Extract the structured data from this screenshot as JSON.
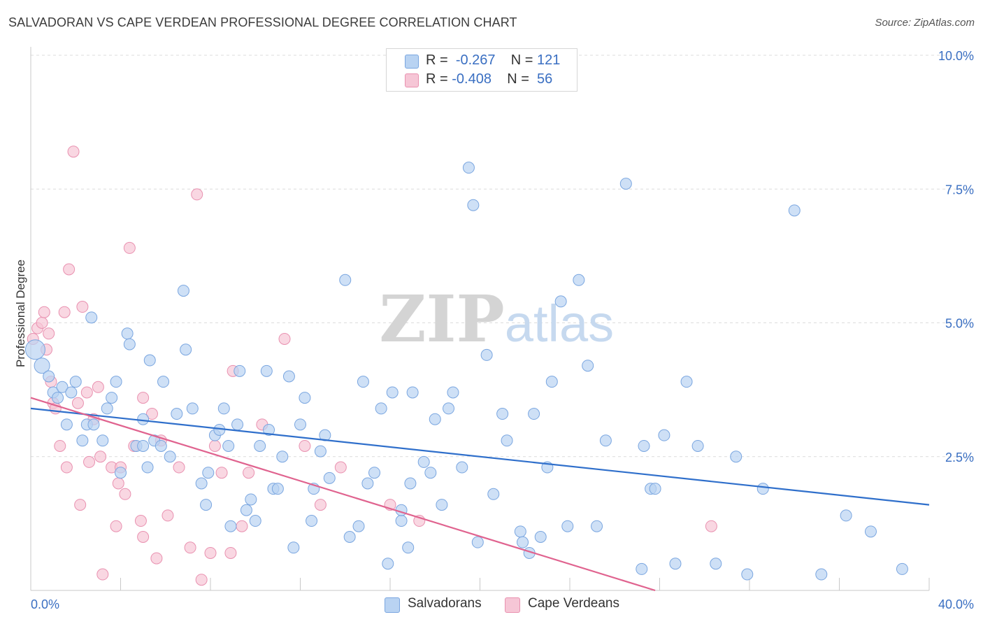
{
  "header": {
    "title": "SALVADORAN VS CAPE VERDEAN PROFESSIONAL DEGREE CORRELATION CHART",
    "source": "Source: ZipAtlas.com"
  },
  "watermark": {
    "zip": "ZIP",
    "atlas": "atlas"
  },
  "legend_top": {
    "rows": [
      {
        "r_label": "R =",
        "r_value": "-0.267",
        "n_label": "N =",
        "n_value": "121"
      },
      {
        "r_label": "R =",
        "r_value": "-0.408",
        "n_label": "N =",
        "n_value": "56"
      }
    ]
  },
  "legend_bottom": {
    "items": [
      "Salvadorans",
      "Cape Verdeans"
    ]
  },
  "colors": {
    "blue_fill": "#b9d3f2",
    "blue_stroke": "#7aa6e0",
    "blue_line": "#2f6fcb",
    "pink_fill": "#f6c6d6",
    "pink_stroke": "#e991b0",
    "pink_line": "#e0638f",
    "tick_label": "#3a6fc2",
    "grid": "#dcdcdc"
  },
  "chart_data": {
    "type": "scatter",
    "title": "SALVADORAN VS CAPE VERDEAN PROFESSIONAL DEGREE CORRELATION CHART",
    "xlabel": "",
    "ylabel": "Professional Degree",
    "xlim": [
      0,
      40
    ],
    "ylim": [
      0,
      10
    ],
    "x_tick_labels": [
      {
        "value": 0,
        "label": "0.0%"
      },
      {
        "value": 40,
        "label": "40.0%"
      }
    ],
    "y_tick_labels": [
      {
        "value": 2.5,
        "label": "2.5%"
      },
      {
        "value": 5.0,
        "label": "5.0%"
      },
      {
        "value": 7.5,
        "label": "7.5%"
      },
      {
        "value": 10.0,
        "label": "10.0%"
      }
    ],
    "grid": "horizontal dashed",
    "legend_position": "top-center",
    "series": [
      {
        "name": "Salvadorans",
        "color": "#b9d3f2",
        "points": [
          [
            0.2,
            4.5
          ],
          [
            0.5,
            4.2
          ],
          [
            0.8,
            4.0
          ],
          [
            1.0,
            3.7
          ],
          [
            1.2,
            3.6
          ],
          [
            1.4,
            3.8
          ],
          [
            1.6,
            3.1
          ],
          [
            1.8,
            3.7
          ],
          [
            2.0,
            3.9
          ],
          [
            2.3,
            2.8
          ],
          [
            2.5,
            3.1
          ],
          [
            2.8,
            3.1
          ],
          [
            2.7,
            5.1
          ],
          [
            3.2,
            2.8
          ],
          [
            3.4,
            3.4
          ],
          [
            3.6,
            3.6
          ],
          [
            3.8,
            3.9
          ],
          [
            4.0,
            2.2
          ],
          [
            4.3,
            4.8
          ],
          [
            4.4,
            4.6
          ],
          [
            4.7,
            2.7
          ],
          [
            5.0,
            2.7
          ],
          [
            5.0,
            3.2
          ],
          [
            5.2,
            2.3
          ],
          [
            5.3,
            4.3
          ],
          [
            5.5,
            2.8
          ],
          [
            5.8,
            2.7
          ],
          [
            5.9,
            3.9
          ],
          [
            6.2,
            2.5
          ],
          [
            6.5,
            3.3
          ],
          [
            6.8,
            5.6
          ],
          [
            6.9,
            4.5
          ],
          [
            7.2,
            3.4
          ],
          [
            7.6,
            2.0
          ],
          [
            7.8,
            1.6
          ],
          [
            7.9,
            2.2
          ],
          [
            8.2,
            2.9
          ],
          [
            8.4,
            3.0
          ],
          [
            8.6,
            3.4
          ],
          [
            8.8,
            2.7
          ],
          [
            8.9,
            1.2
          ],
          [
            9.2,
            3.1
          ],
          [
            9.3,
            4.1
          ],
          [
            9.6,
            1.5
          ],
          [
            9.8,
            1.7
          ],
          [
            10.0,
            1.3
          ],
          [
            10.2,
            2.7
          ],
          [
            10.5,
            4.1
          ],
          [
            10.6,
            3.0
          ],
          [
            10.8,
            1.9
          ],
          [
            11.0,
            1.9
          ],
          [
            11.2,
            2.5
          ],
          [
            11.5,
            4.0
          ],
          [
            11.7,
            0.8
          ],
          [
            12.0,
            3.1
          ],
          [
            12.2,
            3.6
          ],
          [
            12.5,
            1.3
          ],
          [
            12.6,
            1.9
          ],
          [
            12.9,
            2.6
          ],
          [
            13.1,
            2.9
          ],
          [
            13.3,
            2.1
          ],
          [
            14.0,
            5.8
          ],
          [
            14.2,
            1.0
          ],
          [
            14.6,
            1.2
          ],
          [
            14.8,
            3.9
          ],
          [
            15.0,
            2.0
          ],
          [
            15.3,
            2.2
          ],
          [
            15.6,
            3.4
          ],
          [
            15.9,
            0.5
          ],
          [
            16.1,
            3.7
          ],
          [
            16.5,
            1.3
          ],
          [
            16.5,
            1.5
          ],
          [
            16.8,
            0.8
          ],
          [
            16.9,
            2.0
          ],
          [
            17.0,
            3.7
          ],
          [
            17.5,
            2.4
          ],
          [
            17.8,
            2.2
          ],
          [
            18.0,
            3.2
          ],
          [
            18.3,
            1.6
          ],
          [
            18.6,
            3.4
          ],
          [
            18.8,
            3.7
          ],
          [
            19.2,
            2.3
          ],
          [
            19.5,
            7.9
          ],
          [
            19.7,
            7.2
          ],
          [
            19.9,
            0.9
          ],
          [
            20.3,
            4.4
          ],
          [
            20.6,
            1.8
          ],
          [
            21.0,
            3.3
          ],
          [
            21.2,
            2.8
          ],
          [
            21.8,
            1.1
          ],
          [
            21.9,
            0.9
          ],
          [
            22.2,
            0.7
          ],
          [
            22.4,
            3.3
          ],
          [
            22.7,
            1.0
          ],
          [
            23.0,
            2.3
          ],
          [
            23.2,
            3.9
          ],
          [
            23.6,
            5.4
          ],
          [
            23.9,
            1.2
          ],
          [
            24.4,
            5.8
          ],
          [
            24.8,
            4.2
          ],
          [
            25.2,
            1.2
          ],
          [
            25.6,
            2.8
          ],
          [
            26.5,
            7.6
          ],
          [
            27.2,
            0.4
          ],
          [
            27.3,
            2.7
          ],
          [
            27.6,
            1.9
          ],
          [
            27.8,
            1.9
          ],
          [
            28.2,
            2.9
          ],
          [
            28.7,
            0.5
          ],
          [
            29.2,
            3.9
          ],
          [
            29.7,
            2.7
          ],
          [
            30.5,
            0.5
          ],
          [
            31.4,
            2.5
          ],
          [
            31.9,
            0.3
          ],
          [
            32.6,
            1.9
          ],
          [
            34.0,
            7.1
          ],
          [
            35.2,
            0.3
          ],
          [
            36.3,
            1.4
          ],
          [
            37.4,
            1.1
          ],
          [
            38.8,
            0.4
          ]
        ]
      },
      {
        "name": "Cape Verdeans",
        "color": "#f6c6d6",
        "points": [
          [
            0.1,
            4.7
          ],
          [
            0.3,
            4.9
          ],
          [
            0.5,
            5.0
          ],
          [
            0.6,
            5.2
          ],
          [
            0.7,
            4.5
          ],
          [
            0.8,
            4.8
          ],
          [
            0.9,
            3.9
          ],
          [
            1.0,
            3.5
          ],
          [
            1.1,
            3.4
          ],
          [
            1.3,
            2.7
          ],
          [
            1.5,
            5.2
          ],
          [
            1.6,
            2.3
          ],
          [
            1.7,
            6.0
          ],
          [
            1.9,
            8.2
          ],
          [
            2.1,
            3.5
          ],
          [
            2.2,
            1.6
          ],
          [
            2.3,
            5.3
          ],
          [
            2.5,
            3.7
          ],
          [
            2.6,
            2.4
          ],
          [
            2.8,
            3.2
          ],
          [
            3.0,
            3.8
          ],
          [
            3.1,
            2.5
          ],
          [
            3.2,
            0.3
          ],
          [
            3.6,
            2.3
          ],
          [
            3.8,
            1.2
          ],
          [
            3.9,
            2.0
          ],
          [
            4.0,
            2.3
          ],
          [
            4.2,
            1.8
          ],
          [
            4.4,
            6.4
          ],
          [
            4.6,
            2.7
          ],
          [
            4.9,
            1.3
          ],
          [
            5.0,
            1.0
          ],
          [
            5.0,
            3.6
          ],
          [
            5.4,
            3.3
          ],
          [
            5.6,
            0.6
          ],
          [
            5.8,
            2.8
          ],
          [
            6.1,
            1.4
          ],
          [
            6.6,
            2.3
          ],
          [
            7.1,
            0.8
          ],
          [
            7.4,
            7.4
          ],
          [
            7.6,
            0.2
          ],
          [
            8.0,
            0.7
          ],
          [
            8.2,
            2.7
          ],
          [
            8.5,
            2.2
          ],
          [
            8.9,
            0.7
          ],
          [
            9.0,
            4.1
          ],
          [
            9.4,
            1.2
          ],
          [
            9.7,
            2.2
          ],
          [
            10.3,
            3.1
          ],
          [
            11.3,
            4.7
          ],
          [
            12.2,
            2.7
          ],
          [
            12.9,
            1.6
          ],
          [
            13.8,
            2.3
          ],
          [
            16.0,
            1.6
          ],
          [
            17.3,
            1.3
          ],
          [
            30.3,
            1.2
          ]
        ]
      }
    ],
    "trend_lines": [
      {
        "series": "Salvadorans",
        "x": [
          0,
          40
        ],
        "y": [
          3.4,
          1.6
        ]
      },
      {
        "series": "Cape Verdeans",
        "x": [
          0,
          27.8
        ],
        "y": [
          3.6,
          0.0
        ]
      }
    ]
  }
}
